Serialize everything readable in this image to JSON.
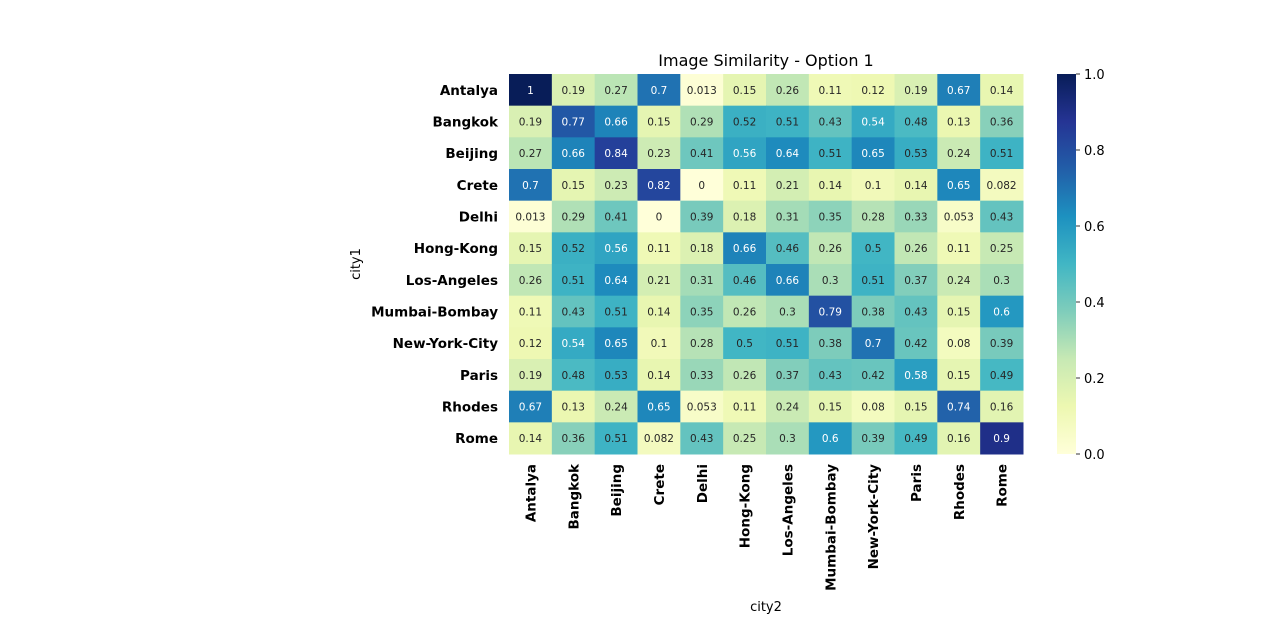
{
  "chart_data": {
    "type": "heatmap",
    "title": "Image Similarity - Option 1",
    "xlabel": "city2",
    "ylabel": "city1",
    "x_categories": [
      "Antalya",
      "Bangkok",
      "Beijing",
      "Crete",
      "Delhi",
      "Hong-Kong",
      "Los-Angeles",
      "Mumbai-Bombay",
      "New-York-City",
      "Paris",
      "Rhodes",
      "Rome"
    ],
    "y_categories": [
      "Antalya",
      "Bangkok",
      "Beijing",
      "Crete",
      "Delhi",
      "Hong-Kong",
      "Los-Angeles",
      "Mumbai-Bombay",
      "New-York-City",
      "Paris",
      "Rhodes",
      "Rome"
    ],
    "values": [
      [
        1,
        0.19,
        0.27,
        0.7,
        0.013,
        0.15,
        0.26,
        0.11,
        0.12,
        0.19,
        0.67,
        0.14
      ],
      [
        0.19,
        0.77,
        0.66,
        0.15,
        0.29,
        0.52,
        0.51,
        0.43,
        0.54,
        0.48,
        0.13,
        0.36
      ],
      [
        0.27,
        0.66,
        0.84,
        0.23,
        0.41,
        0.56,
        0.64,
        0.51,
        0.65,
        0.53,
        0.24,
        0.51
      ],
      [
        0.7,
        0.15,
        0.23,
        0.82,
        0,
        0.11,
        0.21,
        0.14,
        0.1,
        0.14,
        0.65,
        0.082
      ],
      [
        0.013,
        0.29,
        0.41,
        0,
        0.39,
        0.18,
        0.31,
        0.35,
        0.28,
        0.33,
        0.053,
        0.43
      ],
      [
        0.15,
        0.52,
        0.56,
        0.11,
        0.18,
        0.66,
        0.46,
        0.26,
        0.5,
        0.26,
        0.11,
        0.25
      ],
      [
        0.26,
        0.51,
        0.64,
        0.21,
        0.31,
        0.46,
        0.66,
        0.3,
        0.51,
        0.37,
        0.24,
        0.3
      ],
      [
        0.11,
        0.43,
        0.51,
        0.14,
        0.35,
        0.26,
        0.3,
        0.79,
        0.38,
        0.43,
        0.15,
        0.6
      ],
      [
        0.12,
        0.54,
        0.65,
        0.1,
        0.28,
        0.5,
        0.51,
        0.38,
        0.7,
        0.42,
        0.08,
        0.39
      ],
      [
        0.19,
        0.48,
        0.53,
        0.14,
        0.33,
        0.26,
        0.37,
        0.43,
        0.42,
        0.58,
        0.15,
        0.49
      ],
      [
        0.67,
        0.13,
        0.24,
        0.65,
        0.053,
        0.11,
        0.24,
        0.15,
        0.08,
        0.15,
        0.74,
        0.16
      ],
      [
        0.14,
        0.36,
        0.51,
        0.082,
        0.43,
        0.25,
        0.3,
        0.6,
        0.39,
        0.49,
        0.16,
        0.9
      ]
    ],
    "colormap": "YlGnBu",
    "vmin": 0,
    "vmax": 1,
    "colorbar_ticks": [
      "0.0",
      "0.2",
      "0.4",
      "0.6",
      "0.8",
      "1.0"
    ],
    "annotations": true,
    "grid": false,
    "colorbar_position": "right"
  }
}
